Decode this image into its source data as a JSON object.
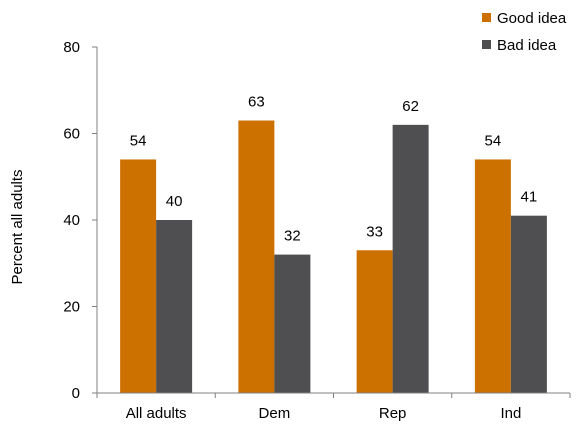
{
  "chart_data": {
    "type": "bar",
    "title": "",
    "xlabel": "",
    "ylabel": "Percent all adults",
    "ylim": [
      0,
      80
    ],
    "yticks": [
      0,
      20,
      40,
      60,
      80
    ],
    "grid": false,
    "legend_position": "top-right",
    "categories": [
      "All adults",
      "Dem",
      "Rep",
      "Ind"
    ],
    "series": [
      {
        "name": "Good idea",
        "color": "#cc7000",
        "values": [
          54,
          63,
          33,
          54
        ]
      },
      {
        "name": "Bad idea",
        "color": "#4f4f51",
        "values": [
          40,
          32,
          62,
          41
        ]
      }
    ]
  }
}
